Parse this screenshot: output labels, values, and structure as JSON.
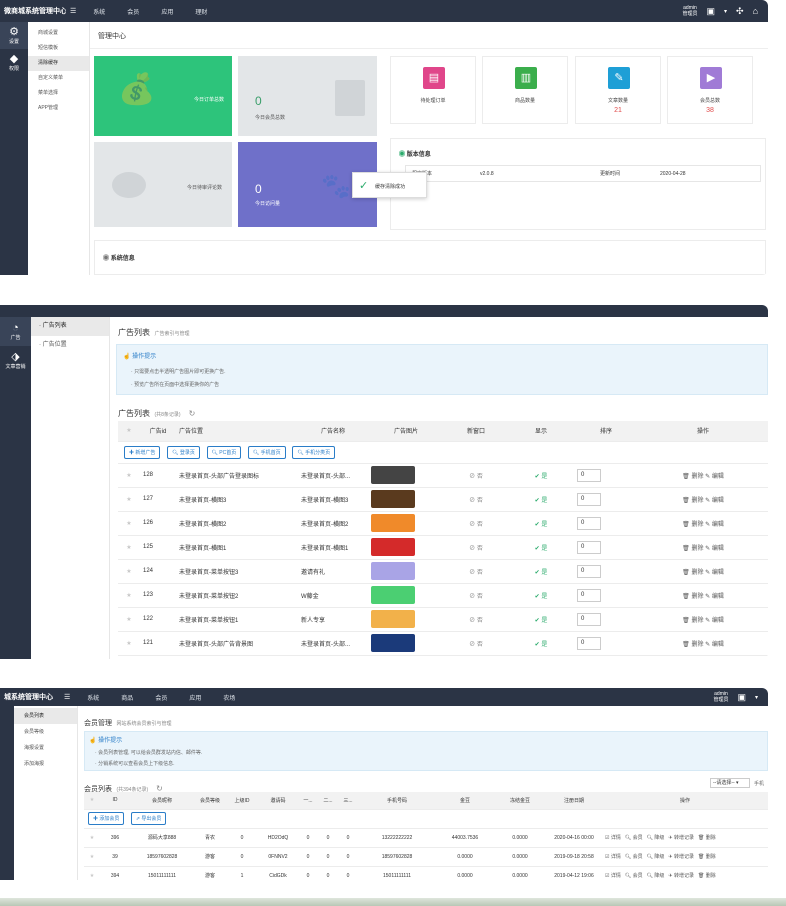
{
  "shot1": {
    "brand": "微商城系统管理中心",
    "top_nav": [
      "系统",
      "会员",
      "应用",
      "理财"
    ],
    "admin_name": "admin",
    "admin_role": "管理员",
    "side": [
      {
        "label": "设置",
        "icon": "gear-icon"
      },
      {
        "label": "权限",
        "icon": "diamond-icon"
      }
    ],
    "submenu": [
      "商城设置",
      "短信模板",
      "清除缓存",
      "自定义菜单",
      "菜单选择",
      "APP管理"
    ],
    "page_title": "管理中心",
    "tiles": [
      {
        "num": "",
        "label": "今日订单总数",
        "color": "#2dc47b"
      },
      {
        "num": "0",
        "label": "今日会员总数",
        "color": "#e3e6e8"
      },
      {
        "num": "",
        "label": "今日待审评论数",
        "color": "#e3e6e8"
      },
      {
        "num": "0",
        "label": "今日访问量",
        "color": "#6f70c9"
      }
    ],
    "quick": [
      {
        "label": "待处理订单",
        "num": "",
        "color": "#e0468a",
        "icon": "document-icon"
      },
      {
        "label": "商品数量",
        "num": "",
        "color": "#3bae4c",
        "icon": "book-icon"
      },
      {
        "label": "文章数量",
        "num": "21",
        "color": "#1e9fd6",
        "icon": "clipboard-icon"
      },
      {
        "label": "会员总数",
        "num": "38",
        "color": "#a07bd6",
        "icon": "truck-icon"
      }
    ],
    "version_title": "版本信息",
    "version_rows": [
      [
        "程序版本",
        "v2.0.8",
        "更新时间",
        "2020-04-28"
      ]
    ],
    "toast": "缓存清除成功",
    "system_title": "系统信息"
  },
  "shot2": {
    "side": [
      {
        "label": "广告",
        "icon": "pie-chart-icon"
      },
      {
        "label": "文章营销",
        "icon": "tag-icon"
      }
    ],
    "submenu": [
      "广告列表",
      "广告位置"
    ],
    "page_title": "广告列表",
    "page_sub": "广告索引与管理",
    "tip_title": "操作提示",
    "tips": [
      "只需要点击半透明广告图片即可更换广告.",
      "预览广告所在页面中选择更换你的广告"
    ],
    "list_title": "广告列表",
    "list_count": "(共8条记录)",
    "headers": [
      "",
      "广告id",
      "广告位置",
      "广告名称",
      "广告图片",
      "新窗口",
      "显示",
      "排序",
      "操作"
    ],
    "buttons": [
      "新增广告",
      "登录页",
      "PC首页",
      "手机首页",
      "手机分类页"
    ],
    "status_no": "否",
    "status_yes": "是",
    "act_delete": "删除",
    "act_edit": "编辑",
    "rows": [
      {
        "id": "128",
        "pos": "未登录首页-头部广告登录图标",
        "name": "未登录首页-头部...",
        "img": "#444",
        "sort": "0"
      },
      {
        "id": "127",
        "pos": "未登录首页-横图3",
        "name": "未登录首页-横图3",
        "img": "#5a3a1e",
        "sort": "0"
      },
      {
        "id": "126",
        "pos": "未登录首页-横图2",
        "name": "未登录首页-横图2",
        "img": "#f08a2a",
        "sort": "0"
      },
      {
        "id": "125",
        "pos": "未登录首页-横图1",
        "name": "未登录首页-横图1",
        "img": "#d42a2a",
        "sort": "0"
      },
      {
        "id": "124",
        "pos": "未登录首页-菜单按钮3",
        "name": "邀请有礼",
        "img": "#a9a4e6",
        "sort": "0"
      },
      {
        "id": "123",
        "pos": "未登录首页-菜单按钮2",
        "name": "W藤金",
        "img": "#4bcf72",
        "sort": "0"
      },
      {
        "id": "122",
        "pos": "未登录首页-菜单按钮1",
        "name": "新人专享",
        "img": "#f2b14a",
        "sort": "0"
      },
      {
        "id": "121",
        "pos": "未登录首页-头部广告背景图",
        "name": "未登录首页-头部...",
        "img": "#1b3a7a",
        "sort": "0"
      }
    ]
  },
  "shot3": {
    "brand": "城系统管理中心",
    "top_nav": [
      "系统",
      "商品",
      "会员",
      "应用",
      "农场"
    ],
    "admin_name": "admin",
    "admin_role": "管理员",
    "submenu": [
      "会员列表",
      "会员等级",
      "海报设置",
      "添加海报"
    ],
    "page_title": "会员管理",
    "page_sub": "网站系统会员索引与管理",
    "tip_title": "操作提示",
    "tips": [
      "会员列表管理, 可以给会员群发站内信、邮件等.",
      "分销系统可以查看会员上下级信息."
    ],
    "list_title": "会员列表",
    "list_count": "(共394条记录)",
    "select": "--请选择--",
    "select_after": "手机",
    "headers": [
      "",
      "ID",
      "会员昵称",
      "会员等级",
      "上级ID",
      "邀请码",
      "一...",
      "二...",
      "三...",
      "手机号码",
      "金豆",
      "冻结金豆",
      "注册日期",
      "操作"
    ],
    "buttons": [
      "添加会员",
      "导出会员"
    ],
    "actions": [
      "详情",
      "会员",
      "降级",
      "转增记录",
      "删除"
    ],
    "rows": [
      {
        "id": "396",
        "nick": "源码大享888",
        "level": "青农",
        "pid": "0",
        "code": "HD2OdQ",
        "a": "0",
        "b": "0",
        "c": "0",
        "phone": "13222222222",
        "bean": "44003.7536",
        "frozen": "0.0000",
        "date": "2020-04-16 00:00"
      },
      {
        "id": "39",
        "nick": "18597602828",
        "level": "游客",
        "pid": "0",
        "code": "0FNNV2",
        "a": "0",
        "b": "0",
        "c": "0",
        "phone": "18597602828",
        "bean": "0.0000",
        "frozen": "0.0000",
        "date": "2019-09-18 20:58"
      },
      {
        "id": "394",
        "nick": "15011111111",
        "level": "游客",
        "pid": "1",
        "code": "CidGDk",
        "a": "0",
        "b": "0",
        "c": "0",
        "phone": "15011111111",
        "bean": "0.0000",
        "frozen": "0.0000",
        "date": "2019-04-12 19:06"
      }
    ]
  }
}
